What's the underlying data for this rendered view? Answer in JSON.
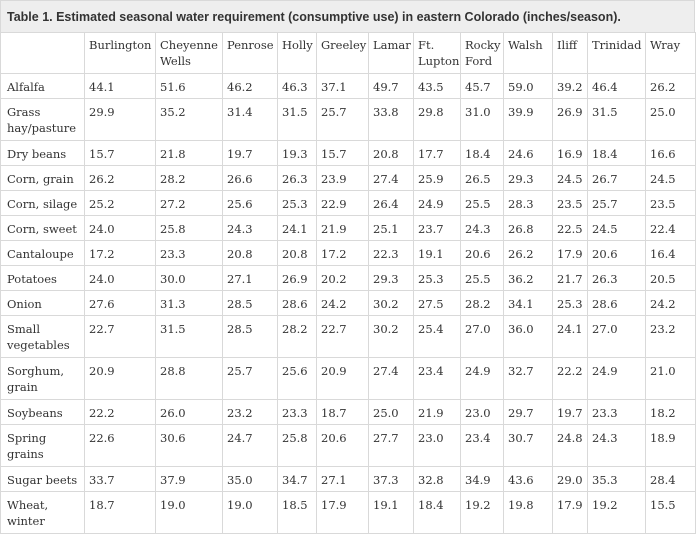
{
  "table": {
    "caption": "Table 1. Estimated seasonal water requirement (consumptive use) in eastern Colorado (inches/season).",
    "columns": [
      "",
      "Burlington",
      "Cheyenne Wells",
      "Penrose",
      "Holly",
      "Greeley",
      "Lamar",
      "Ft. Lupton",
      "Rocky Ford",
      "Walsh",
      "Iliff",
      "Trinidad",
      "Wray"
    ],
    "rows": [
      {
        "crop": "Alfalfa",
        "values": [
          "44.1",
          "51.6",
          "46.2",
          "46.3",
          "37.1",
          "49.7",
          "43.5",
          "45.7",
          "59.0",
          "39.2",
          "46.4",
          "26.2"
        ]
      },
      {
        "crop": "Grass hay/pasture",
        "values": [
          "29.9",
          "35.2",
          "31.4",
          "31.5",
          "25.7",
          "33.8",
          "29.8",
          "31.0",
          "39.9",
          "26.9",
          "31.5",
          "25.0"
        ]
      },
      {
        "crop": "Dry beans",
        "values": [
          "15.7",
          "21.8",
          "19.7",
          "19.3",
          "15.7",
          "20.8",
          "17.7",
          "18.4",
          "24.6",
          "16.9",
          "18.4",
          "16.6"
        ]
      },
      {
        "crop": "Corn, grain",
        "values": [
          "26.2",
          "28.2",
          "26.6",
          "26.3",
          "23.9",
          "27.4",
          "25.9",
          "26.5",
          "29.3",
          "24.5",
          "26.7",
          "24.5"
        ]
      },
      {
        "crop": "Corn, silage",
        "values": [
          "25.2",
          "27.2",
          "25.6",
          "25.3",
          "22.9",
          "26.4",
          "24.9",
          "25.5",
          "28.3",
          "23.5",
          "25.7",
          "23.5"
        ]
      },
      {
        "crop": "Corn, sweet",
        "values": [
          "24.0",
          "25.8",
          "24.3",
          "24.1",
          "21.9",
          "25.1",
          "23.7",
          "24.3",
          "26.8",
          "22.5",
          "24.5",
          "22.4"
        ]
      },
      {
        "crop": "Cantaloupe",
        "values": [
          "17.2",
          "23.3",
          "20.8",
          "20.8",
          "17.2",
          "22.3",
          "19.1",
          "20.6",
          "26.2",
          "17.9",
          "20.6",
          "16.4"
        ]
      },
      {
        "crop": "Potatoes",
        "values": [
          "24.0",
          "30.0",
          "27.1",
          "26.9",
          "20.2",
          "29.3",
          "25.3",
          "25.5",
          "36.2",
          "21.7",
          "26.3",
          "20.5"
        ]
      },
      {
        "crop": "Onion",
        "values": [
          "27.6",
          "31.3",
          "28.5",
          "28.6",
          "24.2",
          "30.2",
          "27.5",
          "28.2",
          "34.1",
          "25.3",
          "28.6",
          "24.2"
        ]
      },
      {
        "crop": "Small vegetables",
        "values": [
          "22.7",
          "31.5",
          "28.5",
          "28.2",
          "22.7",
          "30.2",
          "25.4",
          "27.0",
          "36.0",
          "24.1",
          "27.0",
          "23.2"
        ]
      },
      {
        "crop": "Sorghum, grain",
        "values": [
          "20.9",
          "28.8",
          "25.7",
          "25.6",
          "20.9",
          "27.4",
          "23.4",
          "24.9",
          "32.7",
          "22.2",
          "24.9",
          "21.0"
        ]
      },
      {
        "crop": "Soybeans",
        "values": [
          "22.2",
          "26.0",
          "23.2",
          "23.3",
          "18.7",
          "25.0",
          "21.9",
          "23.0",
          "29.7",
          "19.7",
          "23.3",
          "18.2"
        ]
      },
      {
        "crop": "Spring grains",
        "values": [
          "22.6",
          "30.6",
          "24.7",
          "25.8",
          "20.6",
          "27.7",
          "23.0",
          "23.4",
          "30.7",
          "24.8",
          "24.3",
          "18.9"
        ]
      },
      {
        "crop": "Sugar beets",
        "values": [
          "33.7",
          "37.9",
          "35.0",
          "34.7",
          "27.1",
          "37.3",
          "32.8",
          "34.9",
          "43.6",
          "29.0",
          "35.3",
          "28.4"
        ]
      },
      {
        "crop": "Wheat, winter",
        "values": [
          "18.7",
          "19.0",
          "19.0",
          "18.5",
          "17.9",
          "19.1",
          "18.4",
          "19.2",
          "19.8",
          "17.9",
          "19.2",
          "15.5"
        ]
      }
    ]
  }
}
